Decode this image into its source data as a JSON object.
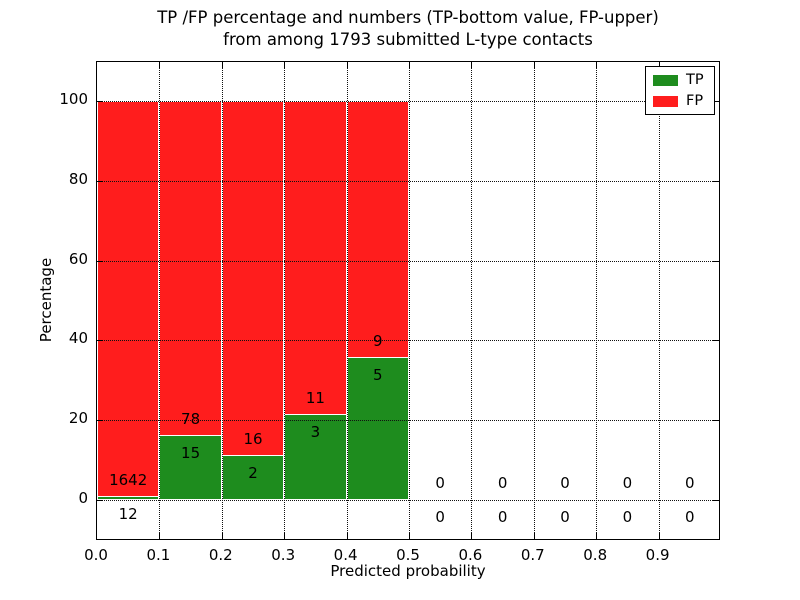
{
  "title": {
    "line1": "TP /FP percentage and numbers (TP-bottom value, FP-upper)",
    "line2": "from among 1793 submitted L-type contacts"
  },
  "axes": {
    "xlabel": "Predicted probability",
    "ylabel": "Percentage",
    "x_ticks": [
      "0.0",
      "0.1",
      "0.2",
      "0.3",
      "0.4",
      "0.5",
      "0.6",
      "0.7",
      "0.8",
      "0.9"
    ],
    "y_ticks": [
      "0",
      "20",
      "40",
      "60",
      "80",
      "100"
    ]
  },
  "legend": {
    "items": [
      {
        "label": "TP",
        "color": "#1e8c1e"
      },
      {
        "label": "FP",
        "color": "#ff1d1d"
      }
    ]
  },
  "colors": {
    "tp": "#1e8c1e",
    "fp": "#ff1d1d",
    "grid": "#111111",
    "axis": "#000000"
  },
  "chart_data": {
    "type": "bar",
    "stacked": true,
    "title": "TP /FP percentage and numbers (TP-bottom value, FP-upper) from among 1793 submitted L-type contacts",
    "xlabel": "Predicted probability",
    "ylabel": "Percentage",
    "xlim": [
      0.0,
      1.0
    ],
    "ylim": [
      -10,
      110
    ],
    "grid": true,
    "legend_position": "upper right",
    "total_contacts": 1793,
    "series_note": "Each non-empty bar is stacked to 100%: TP (green, bottom) = tp/(tp+fp)*100, FP (red, top) = remainder. Counts are annotated: FP count above the TP/FP boundary, TP count below it.",
    "bins": [
      {
        "range": [
          0.0,
          0.1
        ],
        "tp": 12,
        "fp": 1642,
        "tp_pct": 0.73
      },
      {
        "range": [
          0.1,
          0.2
        ],
        "tp": 15,
        "fp": 78,
        "tp_pct": 16.13
      },
      {
        "range": [
          0.2,
          0.3
        ],
        "tp": 2,
        "fp": 16,
        "tp_pct": 11.11
      },
      {
        "range": [
          0.3,
          0.4
        ],
        "tp": 3,
        "fp": 11,
        "tp_pct": 21.43
      },
      {
        "range": [
          0.4,
          0.5
        ],
        "tp": 5,
        "fp": 9,
        "tp_pct": 35.71
      },
      {
        "range": [
          0.5,
          0.6
        ],
        "tp": 0,
        "fp": 0,
        "tp_pct": 0
      },
      {
        "range": [
          0.6,
          0.7
        ],
        "tp": 0,
        "fp": 0,
        "tp_pct": 0
      },
      {
        "range": [
          0.7,
          0.8
        ],
        "tp": 0,
        "fp": 0,
        "tp_pct": 0
      },
      {
        "range": [
          0.8,
          0.9
        ],
        "tp": 0,
        "fp": 0,
        "tp_pct": 0
      },
      {
        "range": [
          0.9,
          1.0
        ],
        "tp": 0,
        "fp": 0,
        "tp_pct": 0
      }
    ]
  }
}
